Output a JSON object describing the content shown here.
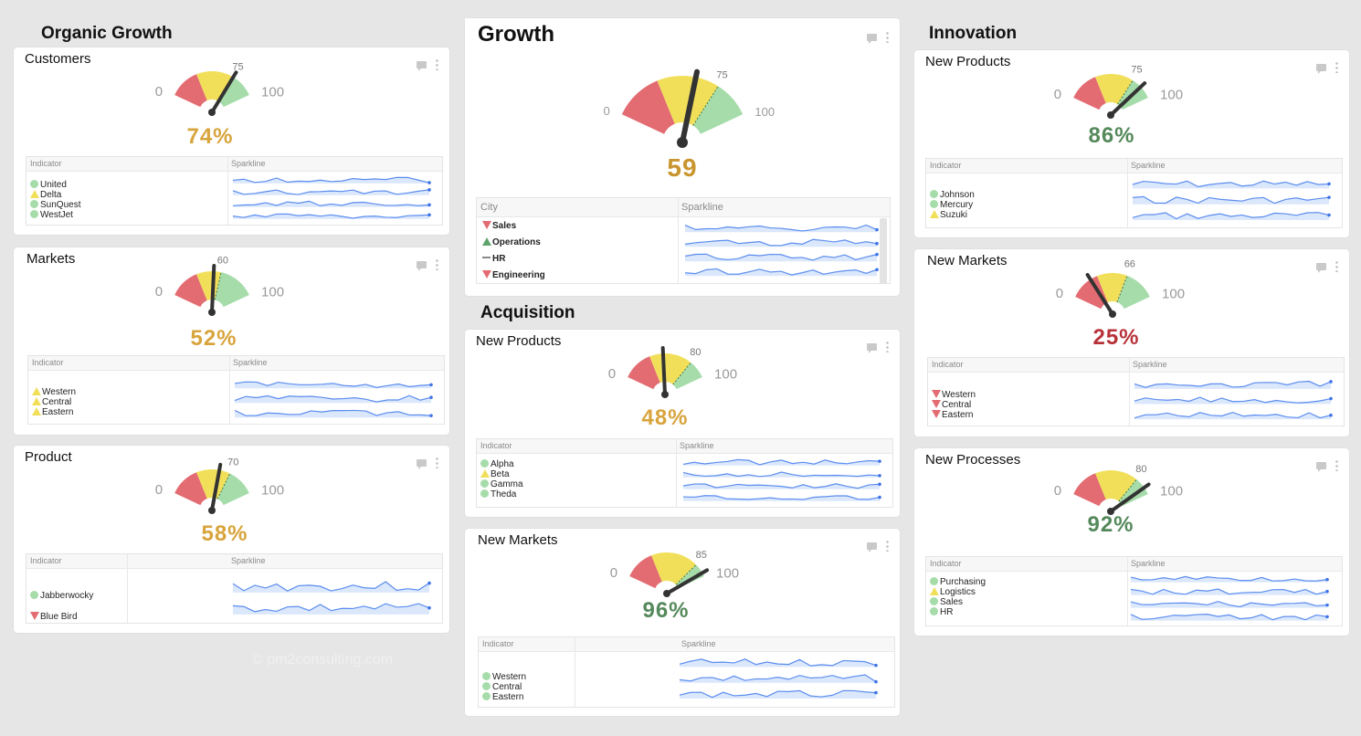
{
  "sections": {
    "organic_growth": "Organic Growth",
    "growth": "Growth",
    "acquisition": "Acquisition",
    "innovation": "Innovation"
  },
  "colors": {
    "red": "#e36b72",
    "yellow": "#f1df5a",
    "green": "#a6dcaa",
    "needle": "#333333",
    "pct_yellow": "#d8a43c",
    "pct_green": "#55895b",
    "pct_red": "#b8323a",
    "growth_value": "#c9952e"
  },
  "table_headers": {
    "indicator": "Indicator",
    "sparkline": "Sparkline",
    "city": "City"
  },
  "watermark": "© pm2consulting.com",
  "cards": [
    {
      "id": "customers",
      "title": "Customers",
      "gauge": {
        "min": "0",
        "max": "100",
        "target": "75",
        "value_fraction": 0.74
      },
      "value": "74%",
      "value_color": "yellow",
      "indicators": [
        {
          "label": "United",
          "status": "green"
        },
        {
          "label": "Delta",
          "status": "yellow"
        },
        {
          "label": "SunQuest",
          "status": "green"
        },
        {
          "label": "WestJet",
          "status": "green"
        }
      ]
    },
    {
      "id": "markets",
      "title": "Markets",
      "gauge": {
        "min": "0",
        "max": "100",
        "target": "60",
        "value_fraction": 0.52
      },
      "value": "52%",
      "value_color": "yellow",
      "indicators": [
        {
          "label": "Western",
          "status": "yellow"
        },
        {
          "label": "Central",
          "status": "yellow"
        },
        {
          "label": "Eastern",
          "status": "yellow"
        }
      ]
    },
    {
      "id": "product",
      "title": "Product",
      "gauge": {
        "min": "0",
        "max": "100",
        "target": "70",
        "value_fraction": 0.58
      },
      "value": "58%",
      "value_color": "yellow",
      "indicators": [
        {
          "label": "Jabberwocky",
          "status": "green"
        },
        {
          "label": "Blue Bird",
          "status": "red"
        }
      ]
    },
    {
      "id": "growth",
      "title": "Growth",
      "gauge": {
        "min": "0",
        "max": "100",
        "target": "75",
        "value_fraction": 0.59
      },
      "value": "59",
      "value_color": "growth",
      "indicators": [
        {
          "label": "Sales",
          "status": "red"
        },
        {
          "label": "Operations",
          "status": "greentri"
        },
        {
          "label": "HR",
          "status": "neutral"
        },
        {
          "label": "Engineering",
          "status": "red"
        }
      ]
    },
    {
      "id": "acq_products",
      "title": "New Products",
      "gauge": {
        "min": "0",
        "max": "100",
        "target": "80",
        "value_fraction": 0.48
      },
      "value": "48%",
      "value_color": "yellow",
      "indicators": [
        {
          "label": "Alpha",
          "status": "green"
        },
        {
          "label": "Beta",
          "status": "yellow"
        },
        {
          "label": "Gamma",
          "status": "green"
        },
        {
          "label": "Theda",
          "status": "green"
        }
      ]
    },
    {
      "id": "acq_markets",
      "title": "New Markets",
      "gauge": {
        "min": "0",
        "max": "100",
        "target": "85",
        "value_fraction": 0.96
      },
      "value": "96%",
      "value_color": "green",
      "indicators": [
        {
          "label": "Western",
          "status": "green"
        },
        {
          "label": "Central",
          "status": "green"
        },
        {
          "label": "Eastern",
          "status": "green"
        }
      ]
    },
    {
      "id": "inn_products",
      "title": "New Products",
      "gauge": {
        "min": "0",
        "max": "100",
        "target": "75",
        "value_fraction": 0.86
      },
      "value": "86%",
      "value_color": "green",
      "indicators": [
        {
          "label": "Johnson",
          "status": "green"
        },
        {
          "label": "Mercury",
          "status": "green"
        },
        {
          "label": "Suzuki",
          "status": "yellow"
        }
      ]
    },
    {
      "id": "inn_markets",
      "title": "New Markets",
      "gauge": {
        "min": "0",
        "max": "100",
        "target": "66",
        "value_fraction": 0.25
      },
      "value": "25%",
      "value_color": "red",
      "indicators": [
        {
          "label": "Western",
          "status": "red"
        },
        {
          "label": "Central",
          "status": "red"
        },
        {
          "label": "Eastern",
          "status": "red"
        }
      ]
    },
    {
      "id": "inn_processes",
      "title": "New Processes",
      "gauge": {
        "min": "0",
        "max": "100",
        "target": "80",
        "value_fraction": 0.92
      },
      "value": "92%",
      "value_color": "green",
      "indicators": [
        {
          "label": "Purchasing",
          "status": "green"
        },
        {
          "label": "Logistics",
          "status": "yellow"
        },
        {
          "label": "Sales",
          "status": "green"
        },
        {
          "label": "HR",
          "status": "green"
        }
      ]
    }
  ]
}
